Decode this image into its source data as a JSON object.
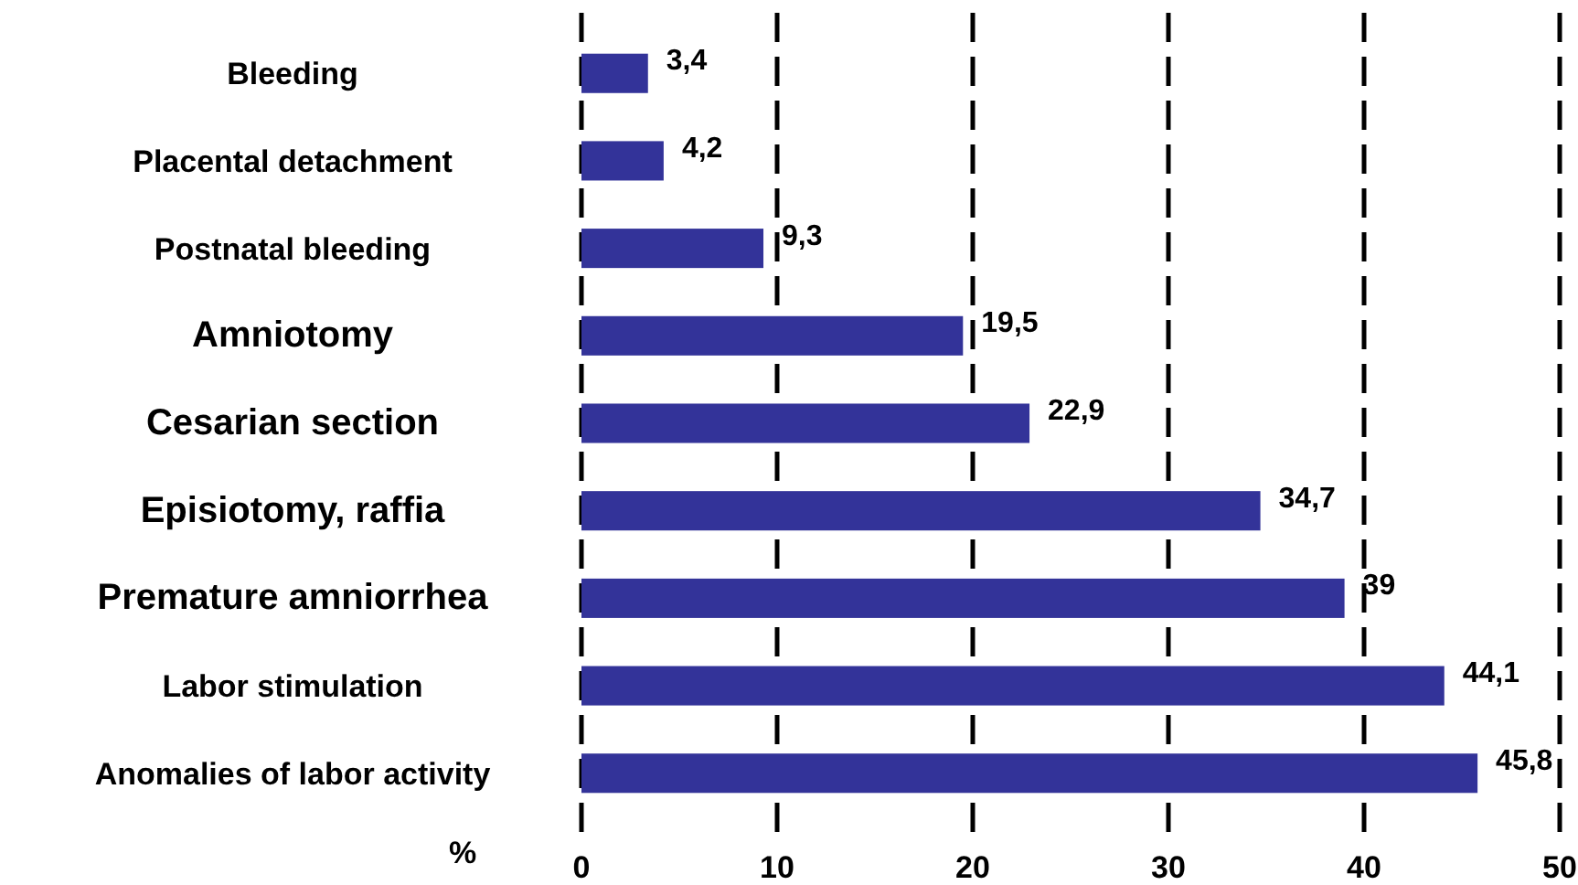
{
  "chart_data": {
    "type": "bar",
    "orientation": "horizontal",
    "xlabel": "%",
    "categories": [
      "Bleeding",
      "Placental detachment",
      "Postnatal bleeding",
      "Amniotomy",
      "Cesarian section",
      "Episiotomy, raffia",
      "Premature amniorrhea",
      "Labor stimulation",
      "Anomalies of labor activity"
    ],
    "values": [
      3.4,
      4.2,
      9.3,
      19.5,
      22.9,
      34.7,
      39,
      44.1,
      45.8
    ],
    "value_labels": [
      "3,4",
      "4,2",
      "9,3",
      "19,5",
      "22,9",
      "34,7",
      "39",
      "44,1",
      "45,8"
    ],
    "color": "#333399",
    "xlim": [
      0,
      50
    ],
    "xticks": [
      0,
      10,
      20,
      30,
      40,
      50
    ],
    "grid": "x"
  }
}
